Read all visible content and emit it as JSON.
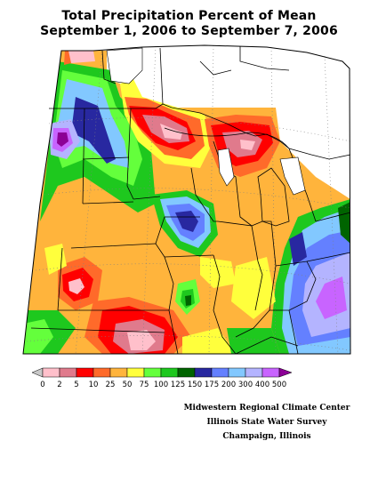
{
  "title": {
    "line1": "Total Precipitation Percent of Mean",
    "line2": "September 1, 2006 to September 7, 2006"
  },
  "legend": {
    "colors": [
      "#c8c8c8",
      "#ffc0cb",
      "#e07a8c",
      "#ff0000",
      "#ff6a2a",
      "#ffb43c",
      "#ffff3c",
      "#64ff3c",
      "#1ec81e",
      "#006400",
      "#2828a0",
      "#6480ff",
      "#82c8ff",
      "#b4b4ff",
      "#c864ff",
      "#8c0096"
    ],
    "labels": [
      "0",
      "2",
      "5",
      "10",
      "25",
      "50",
      "75",
      "100",
      "125",
      "150",
      "175",
      "200",
      "300",
      "400",
      "500"
    ]
  },
  "credits": {
    "line1": "Midwestern Regional Climate Center",
    "line2": "Illinois State Water Survey",
    "line3": "Champaign, Illinois"
  },
  "colors": {
    "background": "#ffffff",
    "no_data": "#ffffff",
    "outline": "#000000"
  }
}
